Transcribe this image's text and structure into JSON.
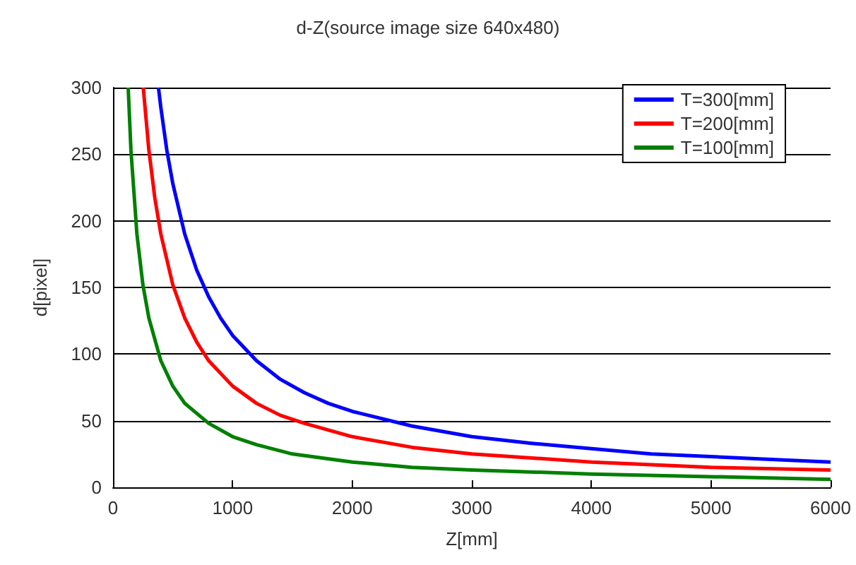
{
  "chart_data": {
    "type": "line",
    "title": "d-Z(source image size 640x480)",
    "xlabel": "Z[mm]",
    "ylabel": "d[pixel]",
    "xlim": [
      0,
      6000
    ],
    "xticks": [
      0,
      1000,
      2000,
      3000,
      4000,
      5000,
      6000
    ],
    "ylim": [
      0,
      300
    ],
    "yticks": [
      0,
      50,
      100,
      150,
      200,
      250,
      300
    ],
    "grid": "y",
    "legend": "top right",
    "marker": "none",
    "line_style": "solid",
    "series": [
      {
        "name": "T=300[mm]",
        "color": "#0000ff",
        "x": [
          380,
          400,
          450,
          500,
          600,
          700,
          800,
          900,
          1000,
          1200,
          1400,
          1600,
          1800,
          2000,
          2500,
          3000,
          3500,
          4000,
          4500,
          5000,
          5500,
          6000
        ],
        "values": [
          300,
          285,
          253,
          228,
          190,
          163,
          143,
          127,
          114,
          95,
          81,
          71,
          63,
          57,
          46,
          38,
          33,
          29,
          25,
          23,
          21,
          19
        ]
      },
      {
        "name": "T=200[mm]",
        "color": "#ff0000",
        "x": [
          253,
          300,
          350,
          400,
          500,
          600,
          700,
          800,
          1000,
          1200,
          1400,
          1600,
          2000,
          2500,
          3000,
          3500,
          4000,
          5000,
          6000
        ],
        "values": [
          300,
          253,
          217,
          190,
          152,
          127,
          109,
          95,
          76,
          63,
          54,
          48,
          38,
          30,
          25,
          22,
          19,
          15,
          13
        ]
      },
      {
        "name": "T=100[mm]",
        "color": "#008000",
        "x": [
          127,
          150,
          200,
          250,
          300,
          400,
          500,
          600,
          800,
          1000,
          1200,
          1500,
          2000,
          2500,
          3000,
          4000,
          5000,
          6000
        ],
        "values": [
          300,
          253,
          190,
          152,
          127,
          95,
          76,
          63,
          48,
          38,
          32,
          25,
          19,
          15,
          13,
          10,
          8,
          6
        ]
      }
    ]
  }
}
